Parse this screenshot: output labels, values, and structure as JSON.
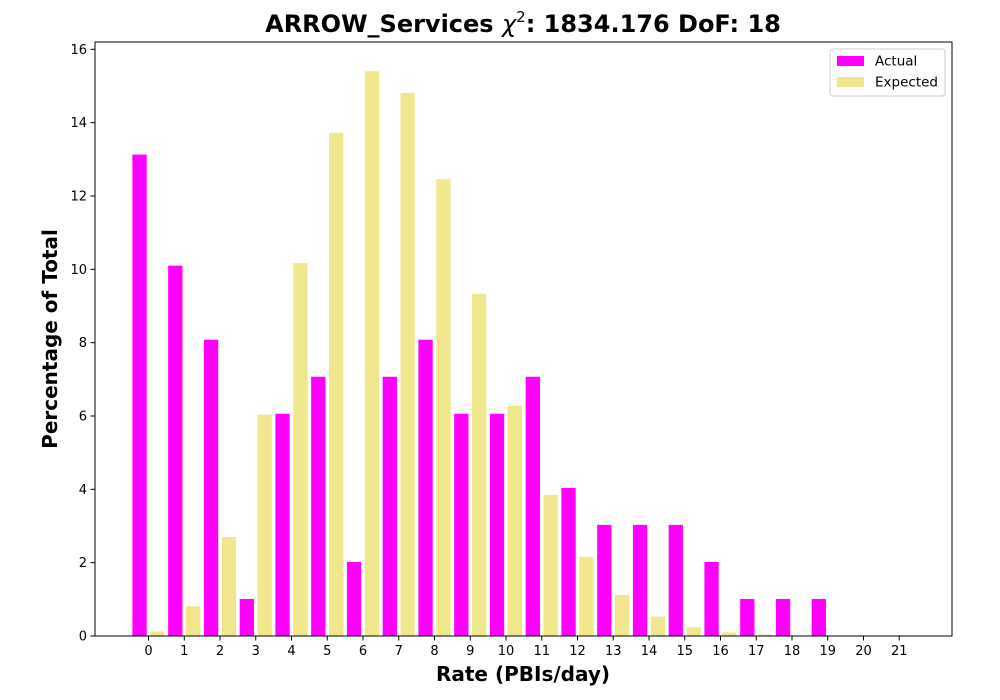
{
  "chart_data": {
    "type": "bar",
    "title_main": "ARROW_Services ",
    "title_chi_symbol": "χ",
    "title_chi_exp": "2",
    "title_rest": ": 1834.176 DoF: 18",
    "xlabel": "Rate (PBIs/day)",
    "ylabel": "Percentage of Total",
    "categories": [
      "0",
      "1",
      "2",
      "3",
      "4",
      "5",
      "6",
      "7",
      "8",
      "9",
      "10",
      "11",
      "12",
      "13",
      "14",
      "15",
      "16",
      "17",
      "18",
      "19",
      "20",
      "21"
    ],
    "ylim": [
      0,
      16.2
    ],
    "yticks": [
      0,
      2,
      4,
      6,
      8,
      10,
      12,
      14,
      16
    ],
    "legend_position": "top-right",
    "series": [
      {
        "name": "Actual",
        "color": "#ff00ff",
        "values": [
          13.13,
          10.1,
          8.08,
          1.01,
          6.06,
          7.07,
          2.02,
          7.07,
          8.08,
          6.06,
          6.06,
          7.07,
          4.04,
          3.03,
          3.03,
          3.03,
          2.02,
          1.01,
          1.01,
          1.01,
          0,
          0
        ]
      },
      {
        "name": "Expected",
        "color": "#f0e68c",
        "values": [
          0.12,
          0.81,
          2.7,
          6.04,
          10.17,
          13.72,
          15.4,
          14.81,
          12.46,
          9.33,
          6.28,
          3.85,
          2.16,
          1.12,
          0.53,
          0.24,
          0.1,
          0.04,
          0.01,
          0.005,
          0.001,
          0.0005
        ]
      }
    ]
  }
}
